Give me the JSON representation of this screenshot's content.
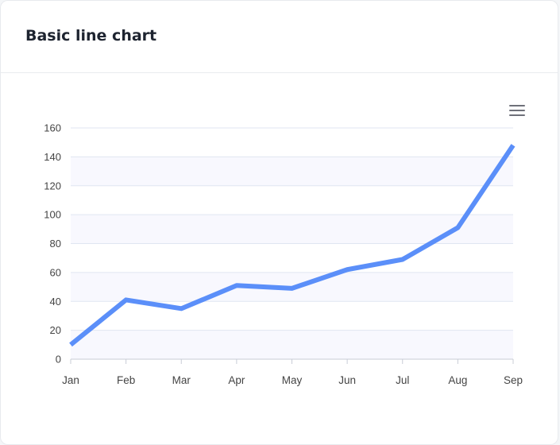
{
  "card": {
    "title": "Basic line chart"
  },
  "toolbar": {
    "menu_icon": "hamburger-menu-icon"
  },
  "colors": {
    "line": "#5b8ff9",
    "band": "#f8f8fe",
    "grid": "#e0e6f1",
    "axis_text": "#444444"
  },
  "chart_data": {
    "type": "line",
    "categories": [
      "Jan",
      "Feb",
      "Mar",
      "Apr",
      "May",
      "Jun",
      "Jul",
      "Aug",
      "Sep"
    ],
    "series": [
      {
        "values": [
          10,
          41,
          35,
          51,
          49,
          62,
          69,
          91,
          148
        ]
      }
    ],
    "ylim": [
      0,
      160
    ],
    "yticks": [
      0,
      20,
      40,
      60,
      80,
      100,
      120,
      140,
      160
    ],
    "grid": true,
    "banded_background": true
  }
}
